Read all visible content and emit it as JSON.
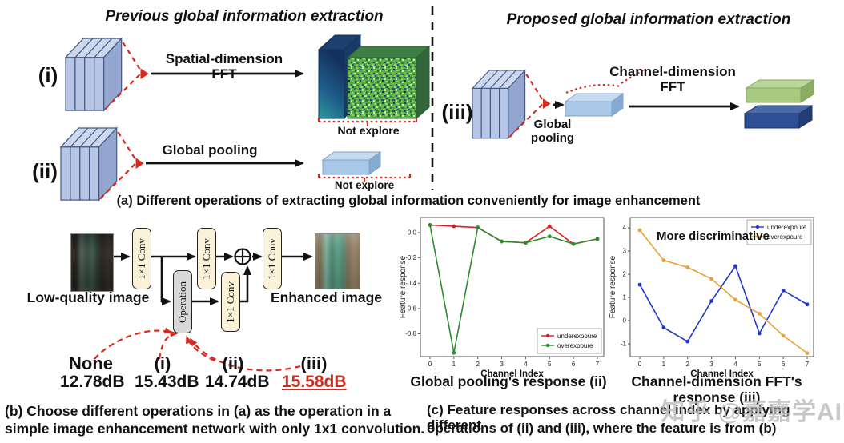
{
  "panel_a": {
    "left_title": "Previous global information extraction",
    "right_title": "Proposed global information extraction",
    "row_i": {
      "label": "(i)",
      "arrow_label": "Spatial-dimension FFT",
      "note": "Not explore"
    },
    "row_ii": {
      "label": "(ii)",
      "arrow_label": "Global pooling",
      "note": "Not explore"
    },
    "row_iii": {
      "label": "(iii)",
      "pool_label": "Global\npooling",
      "fft_label": "Channel-dimension FFT"
    },
    "caption": "(a) Different operations of extracting global information conveniently for image enhancement"
  },
  "panel_b": {
    "low_label": "Low-quality image",
    "enhanced_label": "Enhanced image",
    "conv_label": "1×1 Conv",
    "operation_label": "Operation",
    "options": [
      {
        "name": "None",
        "value": "12.78dB",
        "highlight": false
      },
      {
        "name": "(i)",
        "value": "15.43dB",
        "highlight": false
      },
      {
        "name": "(ii)",
        "value": "14.74dB",
        "highlight": false
      },
      {
        "name": "(iii)",
        "value": "15.58dB",
        "highlight": true
      }
    ],
    "highlight_color": "#d42a20",
    "caption_line1": "(b) Choose different operations in (a) as the operation in a",
    "caption_line2": "simple image enhancement network with only 1x1 convolution."
  },
  "panel_c": {
    "annotation": "More discriminative",
    "caption_line1": "(c) Feature responses across channel index by applying different",
    "caption_line2": "operations of (ii) and (iii), where the feature is from (b)"
  },
  "chart_data": [
    {
      "type": "line",
      "title": "Global pooling's response (ii)",
      "xlabel": "Channel Index",
      "ylabel": "Feature response",
      "x": [
        0,
        1,
        2,
        3,
        4,
        5,
        6,
        7
      ],
      "ylim": [
        -0.98,
        0.12
      ],
      "yticks": [
        0.0,
        -0.2,
        -0.4,
        -0.6,
        -0.8
      ],
      "ytick_labels": [
        "0.0",
        "-0.2",
        "-0.4",
        "-0.6",
        "-0.8"
      ],
      "grid": false,
      "legend_position": "lower right",
      "series": [
        {
          "name": "underexpoure",
          "color": "#d62020",
          "values": [
            0.06,
            0.05,
            0.04,
            -0.07,
            -0.08,
            0.05,
            -0.09,
            -0.05
          ]
        },
        {
          "name": "overexpoure",
          "color": "#2e8b2e",
          "values": [
            0.06,
            -0.95,
            0.04,
            -0.07,
            -0.08,
            -0.03,
            -0.09,
            -0.05
          ]
        }
      ]
    },
    {
      "type": "line",
      "title": "Channel-dimension FFT's response (iii)",
      "xlabel": "Channel Index",
      "ylabel": "Feature response",
      "x": [
        0,
        1,
        2,
        3,
        4,
        5,
        6,
        7
      ],
      "ylim": [
        -1.55,
        4.45
      ],
      "yticks": [
        4,
        3,
        2,
        1,
        0,
        -1
      ],
      "ytick_labels": [
        "4",
        "3",
        "2",
        "1",
        "0",
        "-1"
      ],
      "grid": false,
      "legend_position": "upper right",
      "series": [
        {
          "name": "underexpoure",
          "color": "#2038c8",
          "values": [
            1.55,
            -0.3,
            -0.9,
            0.85,
            2.35,
            -0.55,
            1.3,
            0.7
          ]
        },
        {
          "name": "overexpoure",
          "color": "#e6a23c",
          "values": [
            3.9,
            2.6,
            2.3,
            1.8,
            0.9,
            0.3,
            -0.65,
            -1.4
          ]
        }
      ]
    }
  ],
  "watermark": "知乎 @嘉嘉学AI"
}
